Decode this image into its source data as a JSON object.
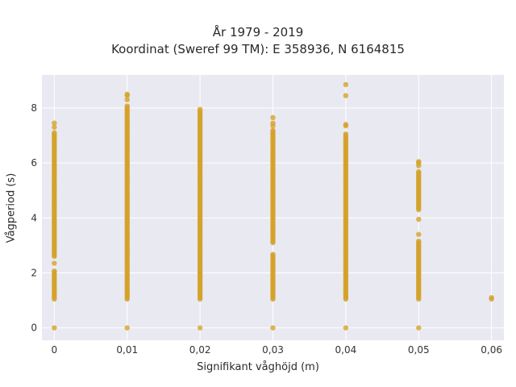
{
  "chart_data": {
    "type": "scatter",
    "title": "År 1979 - 2019",
    "subtitle": "Koordinat (Sweref 99 TM): E 358936, N 6164815",
    "xlabel": "Signifikant våghöjd (m)",
    "ylabel": "Vågperiod (s)",
    "xlim": [
      -0.0017,
      0.0617
    ],
    "ylim": [
      -0.45,
      9.2
    ],
    "x_ticks": [
      0,
      0.01,
      0.02,
      0.03,
      0.04,
      0.05,
      0.06
    ],
    "x_tick_labels": [
      "0",
      "0,01",
      "0,02",
      "0,03",
      "0,04",
      "0,05",
      "0,06"
    ],
    "y_ticks": [
      0,
      2,
      4,
      6,
      8
    ],
    "y_tick_labels": [
      "0",
      "2",
      "4",
      "6",
      "8"
    ],
    "grid": true,
    "legend": "none",
    "marker_color": "#D4A22B",
    "background_color": "#E9E9F1",
    "series": [
      {
        "columns": [
          {
            "x": 0.0,
            "bands": [
              [
                1.05,
                2.1
              ],
              [
                2.6,
                7.1
              ]
            ],
            "points": [
              0,
              2.35,
              7.3,
              7.45
            ]
          },
          {
            "x": 0.01,
            "bands": [
              [
                1.05,
                8.1
              ]
            ],
            "points": [
              0,
              8.3,
              8.45,
              8.5
            ]
          },
          {
            "x": 0.02,
            "bands": [
              [
                1.05,
                7.9
              ]
            ],
            "points": [
              0,
              7.95
            ]
          },
          {
            "x": 0.03,
            "bands": [
              [
                1.05,
                2.7
              ],
              [
                3.1,
                7.2
              ]
            ],
            "points": [
              0,
              7.35,
              7.45,
              7.65
            ]
          },
          {
            "x": 0.04,
            "bands": [
              [
                1.05,
                7.1
              ]
            ],
            "points": [
              0,
              7.35,
              7.4,
              8.45,
              8.85
            ]
          },
          {
            "x": 0.05,
            "bands": [
              [
                1.05,
                3.2
              ],
              [
                4.3,
                5.7
              ]
            ],
            "points": [
              0,
              3.4,
              3.95,
              5.9,
              6.0,
              6.05
            ]
          },
          {
            "x": 0.06,
            "bands": [],
            "points": [
              1.05,
              1.1
            ]
          }
        ]
      }
    ]
  }
}
